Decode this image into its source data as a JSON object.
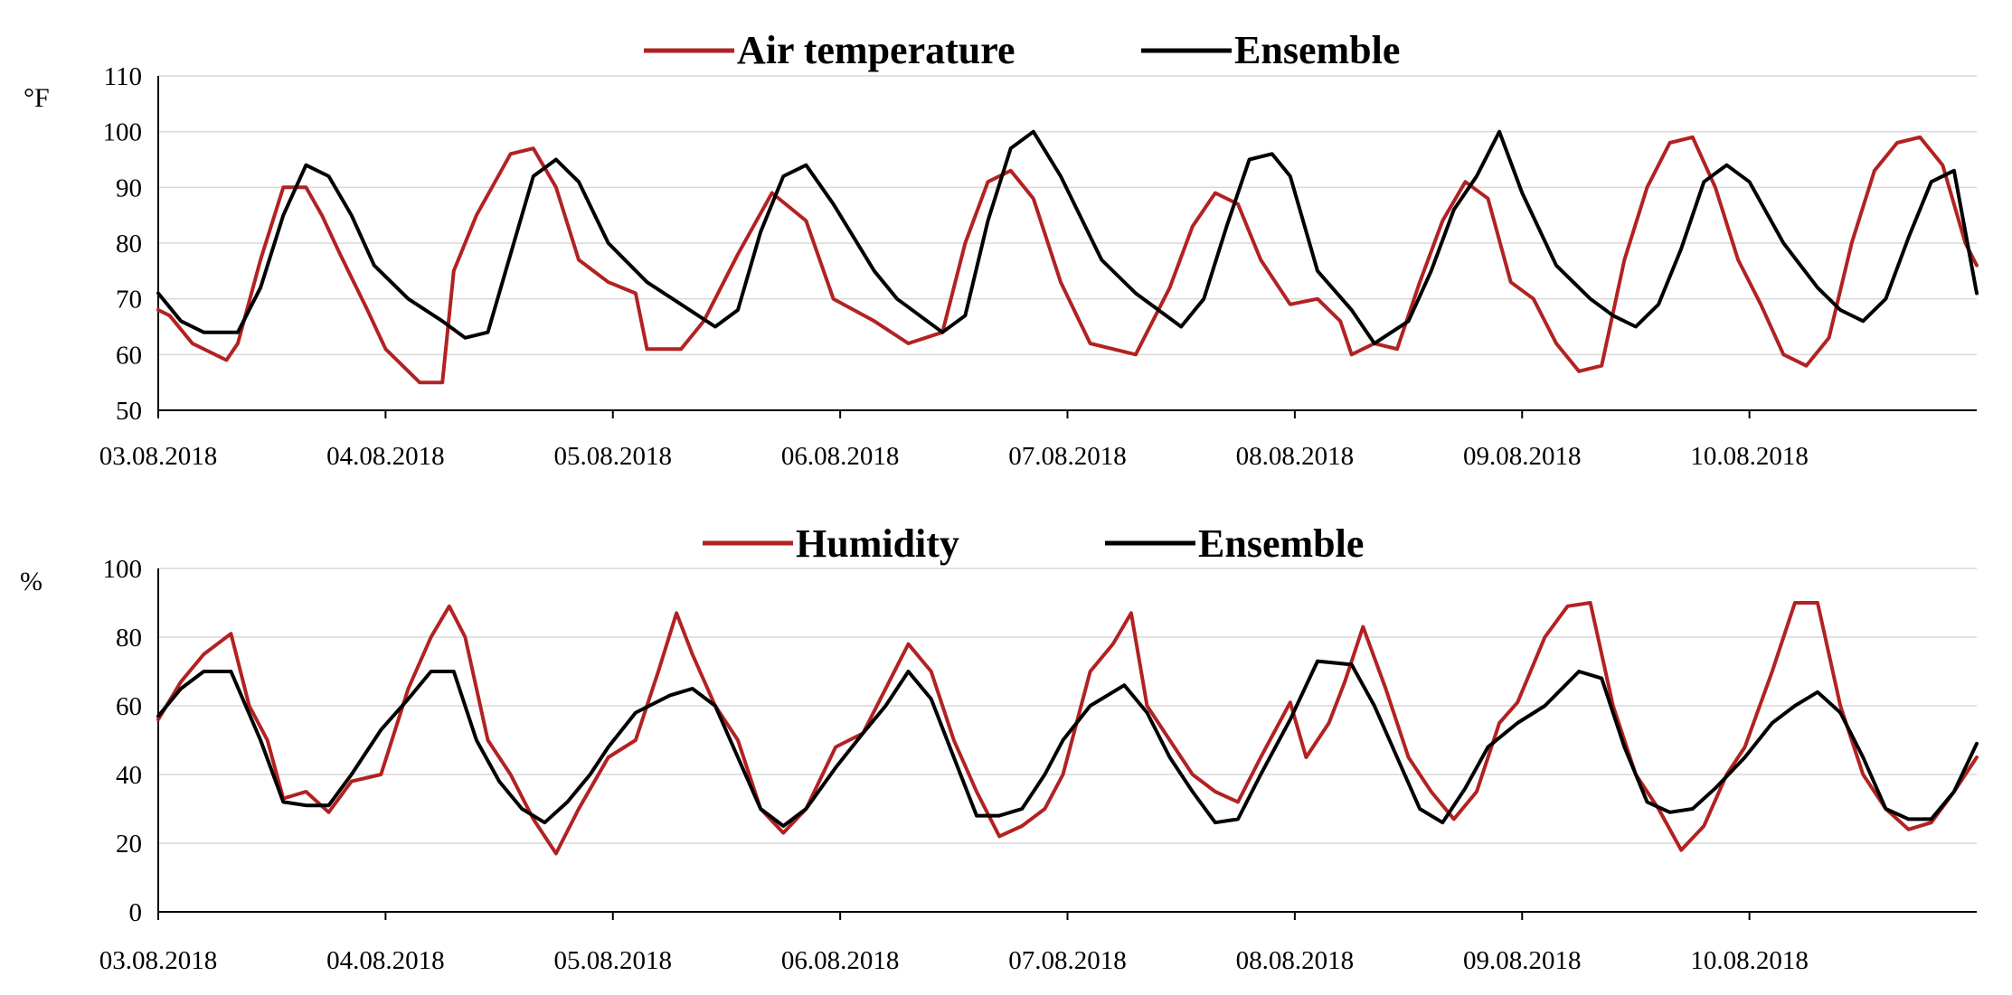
{
  "chart_data": [
    {
      "type": "line",
      "title": "",
      "ylabel": "°F",
      "ylim": [
        50,
        110
      ],
      "yticks": [
        "50",
        "60",
        "70",
        "80",
        "90",
        "100",
        "110"
      ],
      "xlabel": "",
      "xlim": [
        0,
        8
      ],
      "categories": [
        "03.08.2018",
        "04.08.2018",
        "05.08.2018",
        "06.08.2018",
        "07.08.2018",
        "08.08.2018",
        "09.08.2018",
        "10.08.2018"
      ],
      "grid": true,
      "legend_position": "top-center",
      "series": [
        {
          "name": "Air temperature",
          "color": "#b22222",
          "x": [
            0,
            0.05,
            0.15,
            0.3,
            0.35,
            0.45,
            0.55,
            0.65,
            0.72,
            0.8,
            0.92,
            1.0,
            1.15,
            1.25,
            1.3,
            1.4,
            1.55,
            1.65,
            1.75,
            1.85,
            1.98,
            2.1,
            2.15,
            2.3,
            2.4,
            2.55,
            2.7,
            2.85,
            2.97,
            3.15,
            3.3,
            3.45,
            3.55,
            3.65,
            3.75,
            3.85,
            3.97,
            4.1,
            4.2,
            4.3,
            4.45,
            4.55,
            4.65,
            4.75,
            4.85,
            4.98,
            5.1,
            5.2,
            5.25,
            5.35,
            5.45,
            5.55,
            5.65,
            5.75,
            5.85,
            5.95,
            6.05,
            6.15,
            6.25,
            6.35,
            6.45,
            6.55,
            6.65,
            6.75,
            6.85,
            6.95,
            7.05,
            7.15,
            7.25,
            7.35,
            7.45,
            7.55,
            7.65,
            7.75,
            7.85,
            7.95,
            8.0
          ],
          "y": [
            68,
            67,
            62,
            59,
            62,
            77,
            90,
            90,
            85,
            78,
            68,
            61,
            55,
            55,
            75,
            85,
            96,
            97,
            90,
            77,
            73,
            71,
            61,
            61,
            66,
            78,
            89,
            84,
            70,
            66,
            62,
            64,
            80,
            91,
            93,
            88,
            73,
            62,
            61,
            60,
            72,
            83,
            89,
            87,
            77,
            69,
            70,
            66,
            60,
            62,
            61,
            73,
            84,
            91,
            88,
            73,
            70,
            62,
            57,
            58,
            77,
            90,
            98,
            99,
            90,
            77,
            69,
            60,
            58,
            63,
            80,
            93,
            98,
            99,
            94,
            80,
            76
          ]
        },
        {
          "name": "Ensemble",
          "color": "#000000",
          "x": [
            0,
            0.1,
            0.2,
            0.35,
            0.45,
            0.55,
            0.65,
            0.75,
            0.85,
            0.95,
            1.1,
            1.25,
            1.35,
            1.45,
            1.55,
            1.65,
            1.75,
            1.85,
            1.98,
            2.15,
            2.3,
            2.45,
            2.55,
            2.65,
            2.75,
            2.85,
            2.97,
            3.15,
            3.25,
            3.35,
            3.45,
            3.55,
            3.65,
            3.75,
            3.85,
            3.97,
            4.15,
            4.3,
            4.4,
            4.5,
            4.6,
            4.7,
            4.8,
            4.9,
            4.98,
            5.1,
            5.25,
            5.35,
            5.5,
            5.6,
            5.7,
            5.8,
            5.9,
            6.0,
            6.15,
            6.3,
            6.4,
            6.5,
            6.6,
            6.7,
            6.8,
            6.9,
            7.0,
            7.15,
            7.3,
            7.4,
            7.5,
            7.6,
            7.7,
            7.8,
            7.9,
            8.0
          ],
          "y": [
            71,
            66,
            64,
            64,
            72,
            85,
            94,
            92,
            85,
            76,
            70,
            66,
            63,
            64,
            78,
            92,
            95,
            91,
            80,
            73,
            69,
            65,
            68,
            82,
            92,
            94,
            87,
            75,
            70,
            67,
            64,
            67,
            84,
            97,
            100,
            92,
            77,
            71,
            68,
            65,
            70,
            83,
            95,
            96,
            92,
            75,
            68,
            62,
            66,
            75,
            86,
            92,
            100,
            89,
            76,
            70,
            67,
            65,
            69,
            79,
            91,
            94,
            91,
            80,
            72,
            68,
            66,
            70,
            81,
            91,
            93,
            71
          ]
        }
      ]
    },
    {
      "type": "line",
      "title": "",
      "ylabel": "%",
      "ylim": [
        0,
        100
      ],
      "yticks": [
        "0",
        "20",
        "40",
        "60",
        "80",
        "100"
      ],
      "xlabel": "",
      "xlim": [
        0,
        8
      ],
      "categories": [
        "03.08.2018",
        "04.08.2018",
        "05.08.2018",
        "06.08.2018",
        "07.08.2018",
        "08.08.2018",
        "09.08.2018",
        "10.08.2018"
      ],
      "grid": true,
      "legend_position": "top-center",
      "series": [
        {
          "name": "Humidity",
          "color": "#b22222",
          "x": [
            0,
            0.1,
            0.2,
            0.32,
            0.4,
            0.48,
            0.55,
            0.65,
            0.75,
            0.85,
            0.98,
            1.1,
            1.2,
            1.28,
            1.35,
            1.45,
            1.55,
            1.65,
            1.75,
            1.85,
            1.98,
            2.1,
            2.2,
            2.28,
            2.35,
            2.45,
            2.55,
            2.65,
            2.75,
            2.85,
            2.98,
            3.1,
            3.2,
            3.3,
            3.4,
            3.5,
            3.6,
            3.7,
            3.8,
            3.9,
            3.98,
            4.1,
            4.2,
            4.28,
            4.35,
            4.45,
            4.55,
            4.65,
            4.75,
            4.85,
            4.98,
            5.05,
            5.15,
            5.22,
            5.3,
            5.4,
            5.5,
            5.6,
            5.7,
            5.8,
            5.9,
            5.98,
            6.1,
            6.2,
            6.3,
            6.4,
            6.5,
            6.6,
            6.7,
            6.8,
            6.9,
            6.98,
            7.1,
            7.2,
            7.3,
            7.4,
            7.5,
            7.6,
            7.7,
            7.8,
            7.9,
            8.0
          ],
          "y": [
            56,
            67,
            75,
            81,
            60,
            50,
            33,
            35,
            29,
            38,
            40,
            65,
            80,
            89,
            80,
            50,
            40,
            27,
            17,
            30,
            45,
            50,
            70,
            87,
            75,
            60,
            50,
            30,
            23,
            30,
            48,
            52,
            65,
            78,
            70,
            50,
            35,
            22,
            25,
            30,
            40,
            70,
            78,
            87,
            60,
            50,
            40,
            35,
            32,
            45,
            61,
            45,
            55,
            67,
            83,
            65,
            45,
            35,
            27,
            35,
            55,
            61,
            80,
            89,
            90,
            60,
            40,
            30,
            18,
            25,
            40,
            48,
            70,
            90,
            90,
            60,
            40,
            30,
            24,
            26,
            35,
            45
          ]
        },
        {
          "name": "Ensemble",
          "color": "#000000",
          "x": [
            0,
            0.1,
            0.2,
            0.32,
            0.45,
            0.55,
            0.65,
            0.75,
            0.85,
            0.98,
            1.1,
            1.2,
            1.3,
            1.4,
            1.5,
            1.6,
            1.7,
            1.8,
            1.9,
            1.98,
            2.1,
            2.25,
            2.35,
            2.45,
            2.55,
            2.65,
            2.75,
            2.85,
            2.98,
            3.1,
            3.2,
            3.3,
            3.4,
            3.5,
            3.6,
            3.7,
            3.8,
            3.9,
            3.98,
            4.1,
            4.25,
            4.35,
            4.45,
            4.55,
            4.65,
            4.75,
            4.85,
            4.98,
            5.1,
            5.25,
            5.35,
            5.45,
            5.55,
            5.65,
            5.75,
            5.85,
            5.98,
            6.1,
            6.25,
            6.35,
            6.45,
            6.55,
            6.65,
            6.75,
            6.85,
            6.98,
            7.1,
            7.2,
            7.3,
            7.4,
            7.5,
            7.6,
            7.7,
            7.8,
            7.9,
            8.0
          ],
          "y": [
            57,
            65,
            70,
            70,
            50,
            32,
            31,
            31,
            40,
            53,
            62,
            70,
            70,
            50,
            38,
            30,
            26,
            32,
            40,
            48,
            58,
            63,
            65,
            60,
            45,
            30,
            25,
            30,
            42,
            52,
            60,
            70,
            62,
            45,
            28,
            28,
            30,
            40,
            50,
            60,
            66,
            58,
            45,
            35,
            26,
            27,
            40,
            56,
            73,
            72,
            60,
            45,
            30,
            26,
            36,
            48,
            55,
            60,
            70,
            68,
            48,
            32,
            29,
            30,
            36,
            45,
            55,
            60,
            64,
            58,
            45,
            30,
            27,
            27,
            35,
            49
          ]
        }
      ]
    }
  ]
}
